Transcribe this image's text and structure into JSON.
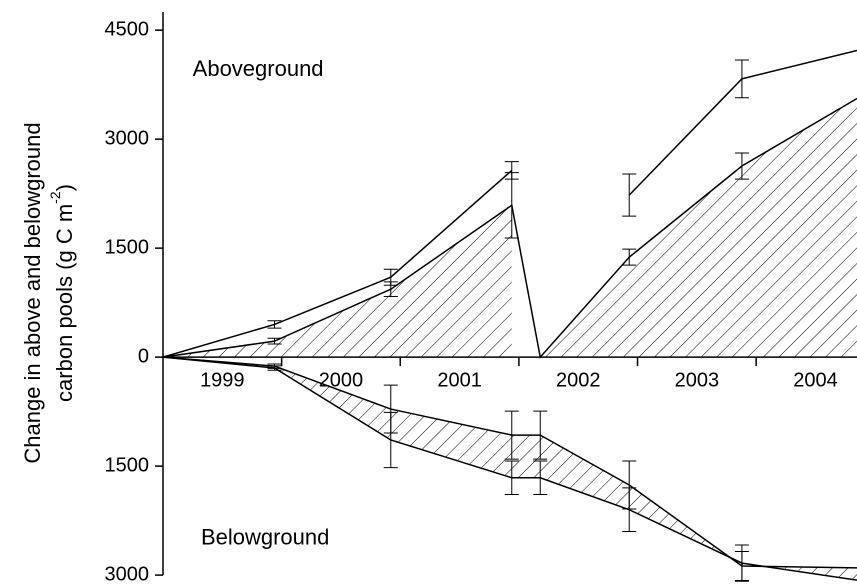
{
  "chart_data": {
    "type": "line",
    "ylabel": {
      "line1": "Change in above and belowground",
      "line2_pre": "carbon pools (g C m",
      "line2_sup": "-2",
      "line2_post": ")"
    },
    "annotations": [
      {
        "text": "Aboveground",
        "x": 1999.25,
        "y": 3950
      },
      {
        "text": "Belowground",
        "x": 1999.32,
        "y": -2500
      }
    ],
    "xlim": [
      1999,
      2004.85
    ],
    "xticks": [
      {
        "value": 1999.5,
        "label": "1999"
      },
      {
        "value": 2000.5,
        "label": "2000"
      },
      {
        "value": 2001.5,
        "label": "2001"
      },
      {
        "value": 2002.5,
        "label": "2002"
      },
      {
        "value": 2003.5,
        "label": "2003"
      },
      {
        "value": 2004.5,
        "label": "2004"
      }
    ],
    "xticks_minor": [
      2000,
      2001,
      2002,
      2003,
      2004
    ],
    "x": [
      1999,
      1999.94,
      2000.92,
      2001.94,
      2002.18,
      2002.93,
      2003.88,
      2004.85
    ],
    "ylim": [
      -3150,
      4750
    ],
    "yticks": [
      {
        "value": -3000,
        "label": "3000"
      },
      {
        "value": -1500,
        "label": "1500"
      },
      0,
      1500,
      3000,
      4500
    ],
    "series": [
      {
        "color": "#000000",
        "values": [
          0,
          450,
          1100,
          2570,
          null,
          2230,
          3830,
          4220
        ],
        "errors": [
          null,
          50,
          110,
          120,
          null,
          290,
          260,
          null
        ]
      },
      {
        "color": "#000000",
        "values": [
          0,
          220,
          935,
          2090,
          0,
          1376,
          2630,
          3560
        ],
        "errors": [
          null,
          40,
          100,
          450,
          null,
          110,
          180,
          null
        ]
      },
      {
        "color": "#000000",
        "values": [
          0,
          -124,
          -715,
          -1073,
          -1073,
          -1760,
          -2875,
          -2900
        ],
        "errors": [
          null,
          30,
          330,
          330,
          330,
          330,
          200,
          null
        ]
      },
      {
        "color": "#000000",
        "values": [
          0,
          -150,
          -1140,
          -1660,
          -1660,
          -2100,
          -2835,
          -3070
        ],
        "errors": [
          null,
          30,
          380,
          230,
          230,
          300,
          250,
          null
        ]
      }
    ],
    "hatch_between": [
      [
        1
      ],
      [
        2,
        3
      ]
    ]
  }
}
